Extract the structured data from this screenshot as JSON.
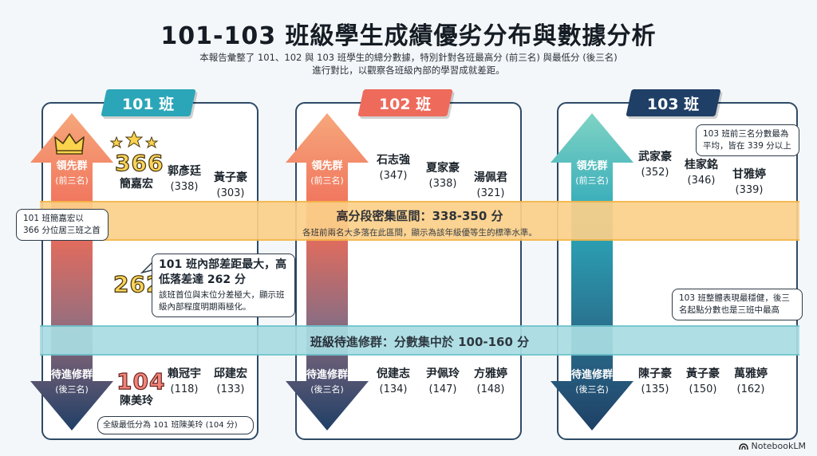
{
  "header": {
    "title": "101-103 班級學生成績優劣分布與數據分析",
    "subtitle_line1": "本報告彙整了 101、102 與 103 班學生的總分數據，特別針對各班最高分 (前三名) 與最低分 (後三名)",
    "subtitle_line2": "進行對比，以觀察各班級內部的學習成就差距。"
  },
  "arrows": {
    "top_label": "領先群",
    "top_sub": "(前三名)",
    "bottom_label": "待進修群",
    "bottom_sub": "(後三名)"
  },
  "classes": [
    {
      "name": "101 班",
      "color": "#2ba6b8",
      "top": [
        {
          "name": "簡嘉宏",
          "score": "366"
        },
        {
          "name": "郭彥廷",
          "score": "(338)"
        },
        {
          "name": "黃子豪",
          "score": "(303)"
        }
      ],
      "bottom": [
        {
          "name": "陳美玲",
          "score": "104"
        },
        {
          "name": "賴冠宇",
          "score": "(118)"
        },
        {
          "name": "邱建宏",
          "score": "(133)"
        }
      ]
    },
    {
      "name": "102 班",
      "color": "#ee6a5b",
      "top": [
        {
          "name": "石志強",
          "score": "(347)"
        },
        {
          "name": "夏家豪",
          "score": "(338)"
        },
        {
          "name": "湯佩君",
          "score": "(321)"
        }
      ],
      "bottom": [
        {
          "name": "倪建志",
          "score": "(134)"
        },
        {
          "name": "尹佩玲",
          "score": "(147)"
        },
        {
          "name": "方雅婷",
          "score": "(148)"
        }
      ]
    },
    {
      "name": "103 班",
      "color": "#1f3f66",
      "top": [
        {
          "name": "武家豪",
          "score": "(352)"
        },
        {
          "name": "桂家銘",
          "score": "(346)"
        },
        {
          "name": "甘雅婷",
          "score": "(339)"
        }
      ],
      "bottom": [
        {
          "name": "陳子豪",
          "score": "(135)"
        },
        {
          "name": "黃子豪",
          "score": "(150)"
        },
        {
          "name": "萬雅婷",
          "score": "(162)"
        }
      ]
    }
  ],
  "bands": {
    "high_title": "高分段密集區間：338-350 分",
    "high_desc": "各班前兩名大多落在此區間，顯示為該年級優等生的標準水準。",
    "low_title": "班級待進修群：分數集中於 100-160 分"
  },
  "notes": {
    "c101_top": "101 班簡嘉宏以 366 分位居三班之首",
    "gap_number": "262",
    "gap_title": "101 班內部差距最大，高低落差達 262 分",
    "gap_desc": "該班首位與末位分差極大，顯示班級內部程度明期兩極化。",
    "c101_low": "全級最低分為 101 班陳美玲 (104 分)",
    "c103_top": "103 班前三名分數最為平均，皆在 339 分以上",
    "c103_mid": "103 班整體表現最穩健，後三名起點分數也是三班中最高"
  },
  "brand": "NotebookLM"
}
